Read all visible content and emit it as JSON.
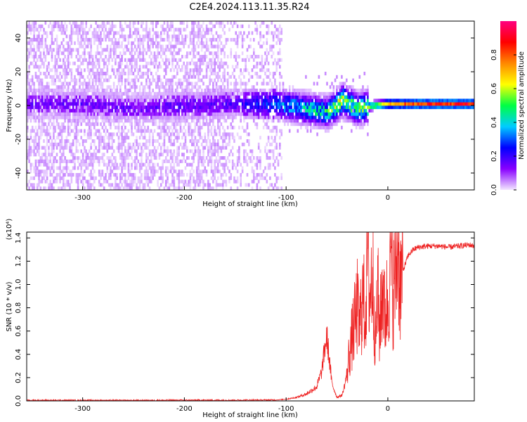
{
  "title": "C2E4.2024.113.11.35.R24",
  "chart_data": [
    {
      "type": "heatmap",
      "xlabel": "Height of straight line (km)",
      "ylabel": "Frequency (Hz)",
      "xlim": [
        -355,
        85
      ],
      "ylim": [
        -50,
        50
      ],
      "xticks": [
        -300,
        -200,
        -100,
        0
      ],
      "yticks": [
        -40,
        -20,
        0,
        20,
        40
      ],
      "colorbar": {
        "label": "Normalized spectral amplitude",
        "range": [
          0.0,
          1.0
        ],
        "ticks": [
          "0.0",
          "0.2",
          "0.4",
          "0.6",
          "0.8"
        ],
        "tick_values": [
          0.0,
          0.2,
          0.4,
          0.6,
          0.8
        ],
        "colors": [
          "#f3e6ff",
          "#8800ff",
          "#0000ff",
          "#00ccff",
          "#00ff44",
          "#ffff00",
          "#ff8800",
          "#ff0000",
          "#ff0080"
        ]
      },
      "ridge": [
        {
          "x": -300,
          "freq": 0,
          "amp": 0.18
        },
        {
          "x": -250,
          "freq": -3,
          "amp": 0.18
        },
        {
          "x": -200,
          "freq": -1,
          "amp": 0.2
        },
        {
          "x": -150,
          "freq": 0,
          "amp": 0.2
        },
        {
          "x": -110,
          "freq": 0,
          "amp": 0.35
        },
        {
          "x": -80,
          "freq": -3,
          "amp": 0.4
        },
        {
          "x": -60,
          "freq": -5,
          "amp": 0.45
        },
        {
          "x": -45,
          "freq": 2,
          "amp": 0.6
        },
        {
          "x": -30,
          "freq": -3,
          "amp": 0.5
        },
        {
          "x": -15,
          "freq": -1,
          "amp": 0.6
        },
        {
          "x": 0,
          "freq": 0,
          "amp": 0.75
        },
        {
          "x": 20,
          "freq": 0,
          "amp": 0.85
        },
        {
          "x": 50,
          "freq": 0,
          "amp": 0.9
        },
        {
          "x": 85,
          "freq": 0,
          "amp": 0.9
        }
      ]
    },
    {
      "type": "line",
      "xlabel": "Height of straight line (km)",
      "ylabel": "SNR (10 * v/v)",
      "y_multiplier": "(x10⁴)",
      "xlim": [
        -355,
        85
      ],
      "ylim": [
        0.0,
        1.45
      ],
      "xticks": [
        -300,
        -200,
        -100,
        0
      ],
      "yticks": [
        "0.0",
        "0.2",
        "0.4",
        "0.6",
        "0.8",
        "1.0",
        "1.2",
        "1.4"
      ],
      "ytick_values": [
        0.0,
        0.2,
        0.4,
        0.6,
        0.8,
        1.0,
        1.2,
        1.4
      ],
      "color": "#ee2222",
      "series": [
        {
          "x": [
            -355,
            -300,
            -250,
            -200,
            -150,
            -110,
            -100,
            -90,
            -80,
            -70,
            -65,
            -62,
            -60,
            -58,
            -55,
            -50,
            -45,
            -42,
            -40,
            -38,
            -35,
            -30,
            -28,
            -25,
            -22,
            -20,
            -18,
            -15,
            -12,
            -10,
            -8,
            -5,
            -3,
            0,
            3,
            5,
            8,
            10,
            12,
            15,
            20,
            25,
            30,
            40,
            50,
            60,
            70,
            80,
            85
          ],
          "y": [
            0.005,
            0.005,
            0.004,
            0.006,
            0.006,
            0.008,
            0.015,
            0.03,
            0.06,
            0.12,
            0.25,
            0.45,
            0.55,
            0.4,
            0.15,
            0.03,
            0.05,
            0.15,
            0.25,
            0.4,
            0.55,
            0.8,
            0.6,
            0.9,
            0.75,
            1.35,
            0.9,
            1.1,
            0.5,
            0.95,
            0.6,
            1.05,
            0.7,
            0.9,
            1.2,
            0.95,
            1.1,
            1.43,
            1.0,
            1.12,
            1.25,
            1.3,
            1.32,
            1.33,
            1.33,
            1.32,
            1.33,
            1.34,
            1.33
          ]
        }
      ]
    }
  ]
}
